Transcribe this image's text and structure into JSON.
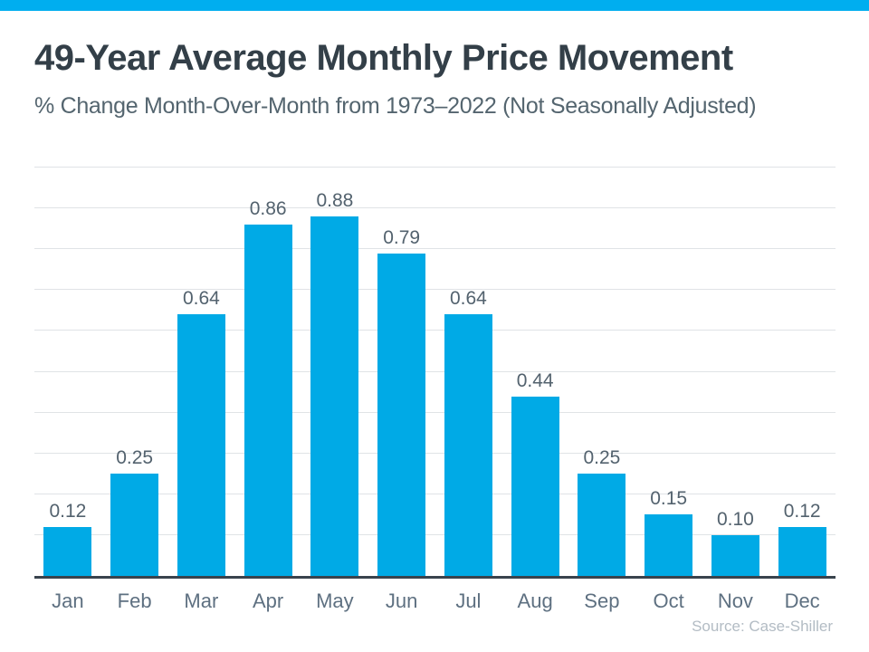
{
  "header": {
    "title": "49-Year Average Monthly Price Movement",
    "subtitle": "% Change Month-Over-Month from 1973–2022 (Not Seasonally Adjusted)"
  },
  "chart_data": {
    "type": "bar",
    "title": "49-Year Average Monthly Price Movement",
    "subtitle": "% Change Month-Over-Month from 1973–2022 (Not Seasonally Adjusted)",
    "categories": [
      "Jan",
      "Feb",
      "Mar",
      "Apr",
      "May",
      "Jun",
      "Jul",
      "Aug",
      "Sep",
      "Oct",
      "Nov",
      "Dec"
    ],
    "values": [
      0.12,
      0.25,
      0.64,
      0.86,
      0.88,
      0.79,
      0.64,
      0.44,
      0.25,
      0.15,
      0.1,
      0.12
    ],
    "value_labels": [
      "0.12",
      "0.25",
      "0.64",
      "0.86",
      "0.88",
      "0.79",
      "0.64",
      "0.44",
      "0.25",
      "0.15",
      "0.10",
      "0.12"
    ],
    "xlabel": "",
    "ylabel": "",
    "ylim": [
      0,
      1.0
    ],
    "gridline_step": 0.1,
    "grid": true,
    "legend": false,
    "source": "Source: Case-Shiller",
    "colors": {
      "accent_stripe": "#00AEEF",
      "bar": "#00AAE6",
      "title": "#333F48",
      "subtitle": "#54656F",
      "value_label": "#53626E",
      "month_label": "#5E7081",
      "gridline": "#E0E3E6",
      "axis_line": "#39434D",
      "source_text": "#B3BCC4"
    }
  }
}
